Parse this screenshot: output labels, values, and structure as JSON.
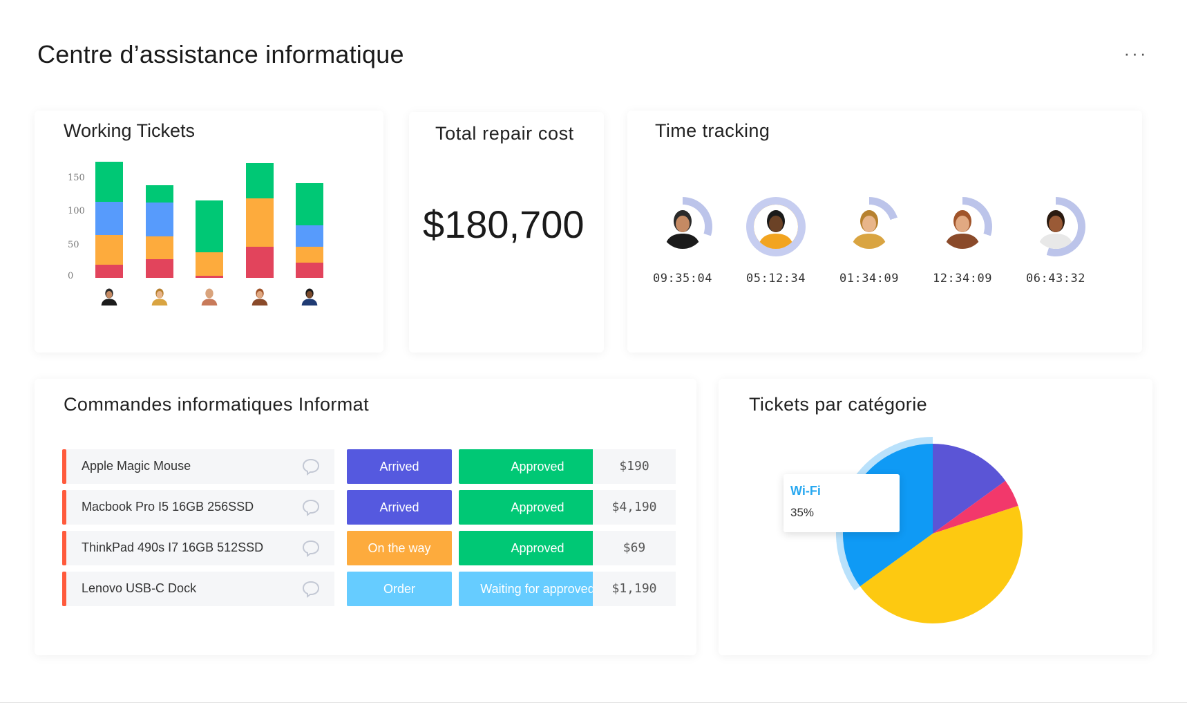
{
  "page": {
    "title": "Centre d’assistance informatique",
    "more_label": "···"
  },
  "working_tickets": {
    "title": "Working Tickets",
    "chart_data": {
      "type": "bar",
      "stacked": true,
      "y_ticks": [
        "150",
        "100",
        "50",
        "0"
      ],
      "ylim": [
        0,
        150
      ],
      "categories": [
        "person-1",
        "person-2",
        "person-3",
        "person-4",
        "person-5"
      ],
      "series": [
        {
          "color": "#e2445c",
          "values": [
            17,
            24,
            3,
            40,
            20
          ]
        },
        {
          "color": "#fdab3d",
          "values": [
            38,
            30,
            30,
            63,
            20
          ]
        },
        {
          "color": "#579bfc",
          "values": [
            43,
            43,
            0,
            0,
            28
          ]
        },
        {
          "color": "#00c875",
          "values": [
            52,
            23,
            67,
            45,
            54
          ]
        }
      ]
    },
    "avatars": [
      "person-bearded-avatar-icon",
      "person-woman-avatar-icon",
      "person-bald-avatar-icon",
      "person-woman-curly-avatar-icon",
      "person-man-avatar-icon"
    ]
  },
  "repair_cost": {
    "title": "Total repair cost",
    "value": "$180,700"
  },
  "time_tracking": {
    "title": "Time tracking",
    "people": [
      {
        "time": "09:35:04",
        "progress": 0.3,
        "highlight": false,
        "avatar": "person-bearded-avatar-icon",
        "skin": "#c58a63",
        "hair": "#2a2a2a",
        "shirt": "#1b1b1b"
      },
      {
        "time": "05:12:34",
        "progress": 1.0,
        "highlight": true,
        "avatar": "person-curly-avatar-icon",
        "skin": "#6b4226",
        "hair": "#1a1a1a",
        "shirt": "#f2a420"
      },
      {
        "time": "01:34:09",
        "progress": 0.2,
        "highlight": false,
        "avatar": "person-woman-avatar-icon",
        "skin": "#e8b58a",
        "hair": "#b7812f",
        "shirt": "#d9a441"
      },
      {
        "time": "12:34:09",
        "progress": 0.3,
        "highlight": false,
        "avatar": "person-woman-long-hair-avatar-icon",
        "skin": "#e1a982",
        "hair": "#a0542a",
        "shirt": "#8a4a2a"
      },
      {
        "time": "06:43:32",
        "progress": 0.55,
        "highlight": false,
        "avatar": "person-man-avatar-icon",
        "skin": "#9a5a36",
        "hair": "#2a1a10",
        "shirt": "#e8e8e8"
      }
    ]
  },
  "orders": {
    "title": "Commandes informatiques Informat",
    "rows": [
      {
        "item": "Apple Magic Mouse",
        "status": "Arrived",
        "status_color": "#5559df",
        "approval": "Approved",
        "approval_color": "#00c875",
        "price": "$190"
      },
      {
        "item": "Macbook Pro I5 16GB 256SSD",
        "status": "Arrived",
        "status_color": "#5559df",
        "approval": "Approved",
        "approval_color": "#00c875",
        "price": "$4,190"
      },
      {
        "item": "ThinkPad 490s I7 16GB 512SSD",
        "status": "On the way",
        "status_color": "#fdab3d",
        "approval": "Approved",
        "approval_color": "#00c875",
        "price": "$69"
      },
      {
        "item": "Lenovo USB-C Dock",
        "status": "Order",
        "status_color": "#66ccff",
        "approval": "Waiting for approved",
        "approval_color": "#66ccff",
        "price": "$1,190"
      }
    ]
  },
  "tickets_by_category": {
    "title": "Tickets par catégorie",
    "chart_data": {
      "type": "pie",
      "slices": [
        {
          "label": "Wi-Fi",
          "value": 35,
          "color": "#0f9af5"
        },
        {
          "label": "",
          "value": 15,
          "color": "#5b55d6"
        },
        {
          "label": "",
          "value": 5,
          "color": "#f2386b"
        },
        {
          "label": "",
          "value": 45,
          "color": "#fdc911"
        }
      ]
    },
    "tooltip": {
      "label": "Wi-Fi",
      "value": "35%"
    }
  },
  "colors": {
    "row_marker": "#ff5a3c",
    "ring_track": "#e3e6f4",
    "ring_fill": "#bcc4ea"
  }
}
